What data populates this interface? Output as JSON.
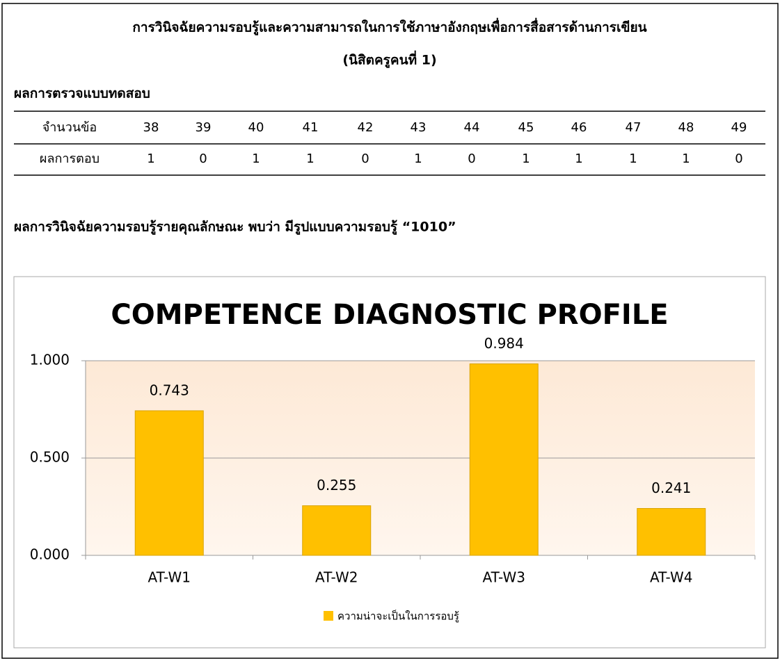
{
  "header": {
    "title": "การวินิจฉัยความรอบรู้และความสามารถในการใช้ภาษาอังกฤษเพื่อการสื่อสารด้านการเขียน",
    "subtitle": "(นิสิตครูคนที่ 1)"
  },
  "section_title": "ผลการตรวจแบบทดสอบ",
  "table": {
    "rows": [
      [
        "จำนวนข้อ",
        38,
        39,
        40,
        41,
        42,
        43,
        44,
        45,
        46,
        47,
        48,
        49
      ],
      [
        "ผลการตอบ",
        1,
        0,
        1,
        1,
        0,
        1,
        0,
        1,
        1,
        1,
        1,
        0
      ]
    ]
  },
  "result_text": "ผลการวินิจฉัยความรอบรู้รายคุณลักษณะ พบว่า มีรูปแบบความรอบรู้  “1010”",
  "chart_data": {
    "type": "bar",
    "title": "COMPETENCE  DIAGNOSTIC  PROFILE",
    "categories": [
      "AT-W1",
      "AT-W2",
      "AT-W3",
      "AT-W4"
    ],
    "series": [
      {
        "name": "ความน่าจะเป็นในการรอบรู้",
        "color": "#ffc000",
        "values": [
          0.743,
          0.255,
          0.984,
          0.241
        ]
      }
    ],
    "ylim": [
      0,
      1
    ],
    "yticks": [
      {
        "value": 0,
        "label": "0.000"
      },
      {
        "value": 0.5,
        "label": "0.500"
      },
      {
        "value": 1,
        "label": "1.000"
      }
    ],
    "grid": true,
    "legend": "bottom"
  }
}
